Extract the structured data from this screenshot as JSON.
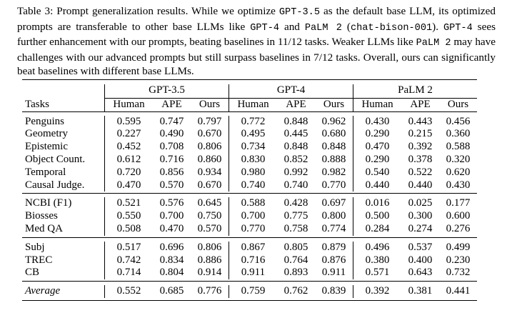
{
  "caption": {
    "table_label": "Table 3:",
    "parts": [
      " Prompt generalization results. While we optimize ",
      " as the default base LLM, its optimized prompts are transferable to other base LLMs like ",
      " and ",
      " (",
      "). ",
      " sees further enhancement with our prompts, beating baselines in 11/12 tasks. Weaker LLMs like ",
      " may have challenges with our advanced prompts but still surpass baselines in 7/12 tasks. Overall, ours can significantly beat baselines with different base LLMs."
    ],
    "mono": [
      "GPT-3.5",
      "GPT-4",
      "PaLM 2",
      "chat-bison-001",
      "GPT-4",
      "PaLM 2"
    ]
  },
  "table": {
    "groups": [
      "GPT-3.5",
      "GPT-4",
      "PaLM 2"
    ],
    "task_header": "Tasks",
    "subheaders": [
      "Human",
      "APE",
      "Ours"
    ],
    "sections": [
      {
        "rows": [
          {
            "task": "Penguins",
            "values": [
              "0.595",
              "0.747",
              "0.797",
              "0.772",
              "0.848",
              "0.962",
              "0.430",
              "0.443",
              "0.456"
            ],
            "bold": [
              2,
              5,
              8
            ]
          },
          {
            "task": "Geometry",
            "values": [
              "0.227",
              "0.490",
              "0.670",
              "0.495",
              "0.445",
              "0.680",
              "0.290",
              "0.215",
              "0.360"
            ],
            "bold": [
              2,
              5,
              8
            ]
          },
          {
            "task": "Epistemic",
            "values": [
              "0.452",
              "0.708",
              "0.806",
              "0.734",
              "0.848",
              "0.848",
              "0.470",
              "0.392",
              "0.588"
            ],
            "bold": [
              2,
              4,
              5,
              8
            ]
          },
          {
            "task": "Object Count.",
            "values": [
              "0.612",
              "0.716",
              "0.860",
              "0.830",
              "0.852",
              "0.888",
              "0.290",
              "0.378",
              "0.320"
            ],
            "bold": [
              2,
              5,
              7
            ]
          },
          {
            "task": "Temporal",
            "values": [
              "0.720",
              "0.856",
              "0.934",
              "0.980",
              "0.992",
              "0.982",
              "0.540",
              "0.522",
              "0.620"
            ],
            "bold": [
              2,
              4,
              8
            ]
          },
          {
            "task": "Causal Judge.",
            "values": [
              "0.470",
              "0.570",
              "0.670",
              "0.740",
              "0.740",
              "0.770",
              "0.440",
              "0.440",
              "0.430"
            ],
            "bold": [
              2,
              5,
              6,
              7
            ]
          }
        ]
      },
      {
        "rows": [
          {
            "task": "NCBI (F1)",
            "values": [
              "0.521",
              "0.576",
              "0.645",
              "0.588",
              "0.428",
              "0.697",
              "0.016",
              "0.025",
              "0.177"
            ],
            "bold": [
              2,
              5,
              8
            ]
          },
          {
            "task": "Biosses",
            "values": [
              "0.550",
              "0.700",
              "0.750",
              "0.700",
              "0.775",
              "0.800",
              "0.500",
              "0.300",
              "0.600"
            ],
            "bold": [
              2,
              5,
              8
            ]
          },
          {
            "task": "Med QA",
            "values": [
              "0.508",
              "0.470",
              "0.570",
              "0.770",
              "0.758",
              "0.774",
              "0.284",
              "0.274",
              "0.276"
            ],
            "bold": [
              2,
              5,
              6
            ]
          }
        ]
      },
      {
        "rows": [
          {
            "task": "Subj",
            "values": [
              "0.517",
              "0.696",
              "0.806",
              "0.867",
              "0.805",
              "0.879",
              "0.496",
              "0.537",
              "0.499"
            ],
            "bold": [
              2,
              5,
              7
            ]
          },
          {
            "task": "TREC",
            "values": [
              "0.742",
              "0.834",
              "0.886",
              "0.716",
              "0.764",
              "0.876",
              "0.380",
              "0.400",
              "0.230"
            ],
            "bold": [
              2,
              5,
              7
            ]
          },
          {
            "task": "CB",
            "values": [
              "0.714",
              "0.804",
              "0.914",
              "0.911",
              "0.893",
              "0.911",
              "0.571",
              "0.643",
              "0.732"
            ],
            "bold": [
              2,
              3,
              5,
              8
            ]
          }
        ]
      },
      {
        "italic_task": true,
        "rows": [
          {
            "task": "Average",
            "values": [
              "0.552",
              "0.685",
              "0.776",
              "0.759",
              "0.762",
              "0.839",
              "0.392",
              "0.381",
              "0.441"
            ],
            "bold": [
              2,
              5,
              8
            ]
          }
        ]
      }
    ]
  }
}
